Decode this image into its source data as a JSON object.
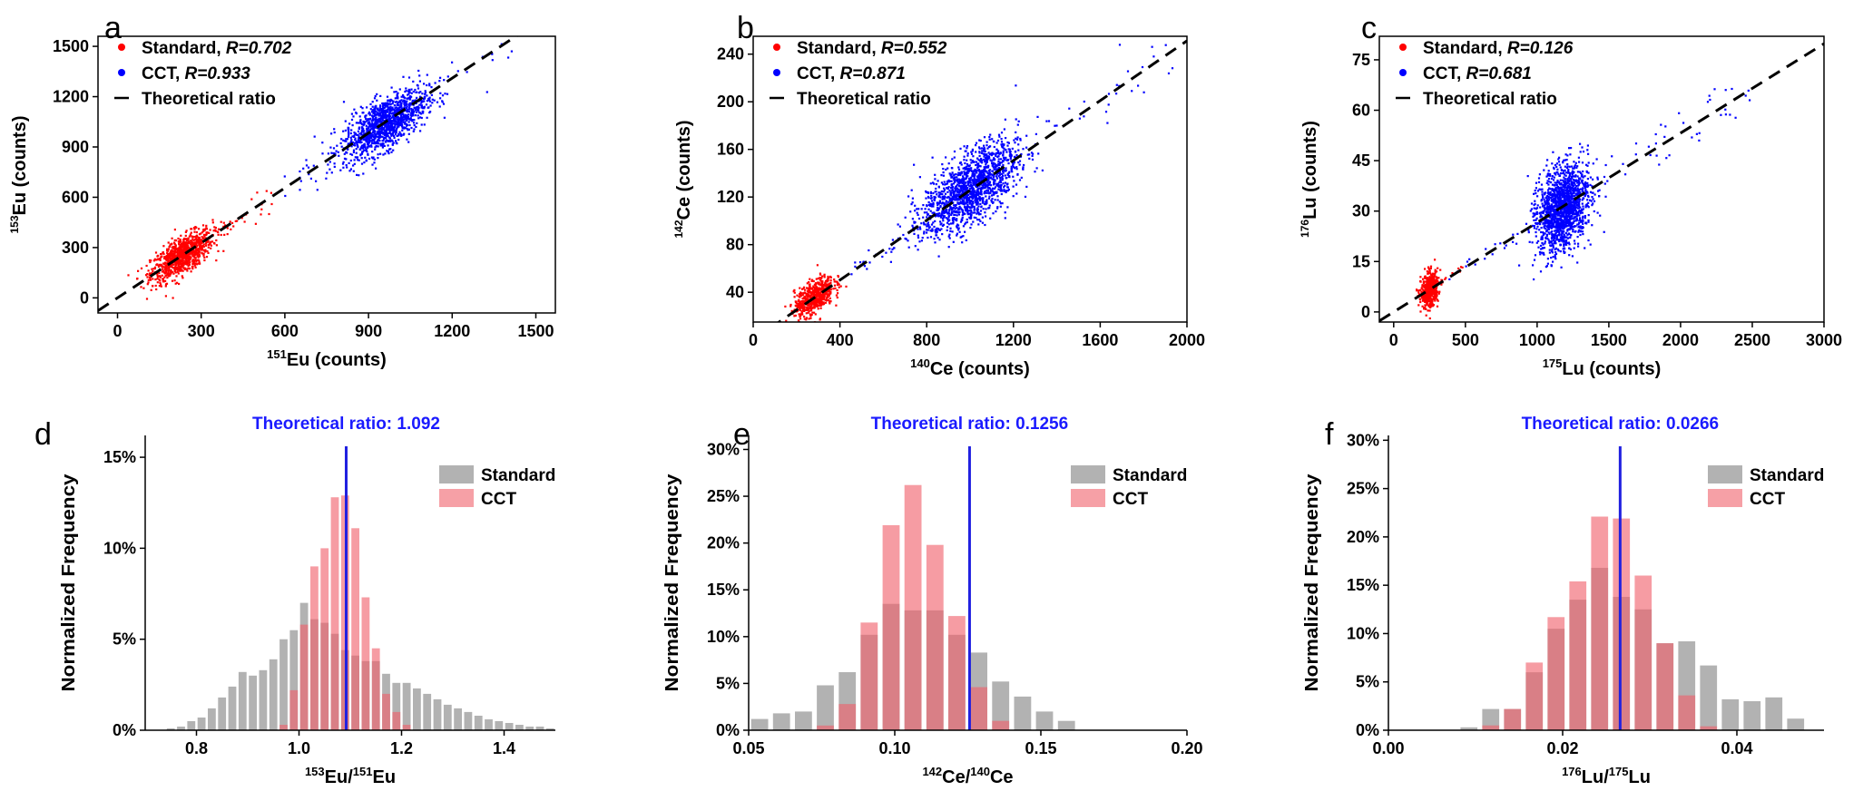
{
  "chart_data": [
    {
      "panel": "a",
      "type": "scatter",
      "xlabel_sup": "151",
      "xlabel_main": "Eu (counts)",
      "ylabel_sup": "153",
      "ylabel_main": "Eu (counts)",
      "xlim": [
        -70,
        1570
      ],
      "ylim": [
        -90,
        1560
      ],
      "xticks": [
        0,
        300,
        600,
        900,
        1200,
        1500
      ],
      "yticks": [
        0,
        300,
        600,
        900,
        1200,
        1500
      ],
      "series": [
        {
          "name": "Standard",
          "r_text": "R=0.702",
          "color": "#ff0000",
          "cluster": {
            "cx": 230,
            "cy": 250,
            "sx": 55,
            "sy": 55,
            "n": 900,
            "tail_to": 560,
            "tail_n": 40
          }
        },
        {
          "name": "CCT",
          "r_text": "R=0.933",
          "color": "#0000ff",
          "cluster": {
            "cx": 960,
            "cy": 1040,
            "sx": 75,
            "sy": 75,
            "n": 1200,
            "tail_from": 560,
            "tail_to": 1420,
            "tail_n": 60
          }
        }
      ],
      "reference_line": {
        "name": "Theoretical ratio",
        "slope": 1.092
      }
    },
    {
      "panel": "b",
      "type": "scatter",
      "xlabel_sup": "140",
      "xlabel_main": "Ce (counts)",
      "ylabel_sup": "142",
      "ylabel_main": "Ce (counts)",
      "xlim": [
        0,
        2000
      ],
      "ylim": [
        15,
        255
      ],
      "xticks": [
        0,
        400,
        800,
        1200,
        1600,
        2000
      ],
      "yticks": [
        40,
        80,
        120,
        160,
        200,
        240
      ],
      "series": [
        {
          "name": "Standard",
          "r_text": "R=0.552",
          "color": "#ff0000",
          "cluster": {
            "cx": 280,
            "cy": 36,
            "sx": 45,
            "sy": 7,
            "n": 600,
            "tail_to": 420,
            "tail_n": 10
          }
        },
        {
          "name": "CCT",
          "r_text": "R=0.871",
          "color": "#0000ff",
          "cluster": {
            "cx": 1000,
            "cy": 127,
            "sx": 110,
            "sy": 15,
            "n": 1500,
            "tail_from": 420,
            "tail_to": 1950,
            "tail_n": 70
          }
        }
      ],
      "reference_line": {
        "name": "Theoretical ratio",
        "slope": 0.1256
      }
    },
    {
      "panel": "c",
      "type": "scatter",
      "xlabel_sup": "175",
      "xlabel_main": "Lu (counts)",
      "ylabel_sup": "176",
      "ylabel_main": "Lu (counts)",
      "xlim": [
        -100,
        3000
      ],
      "ylim": [
        -3,
        82
      ],
      "xticks": [
        0,
        500,
        1000,
        1500,
        2000,
        2500,
        3000
      ],
      "yticks": [
        0,
        15,
        30,
        45,
        60,
        75
      ],
      "series": [
        {
          "name": "Standard",
          "r_text": "R=0.126",
          "color": "#ff0000",
          "cluster": {
            "cx": 250,
            "cy": 6.5,
            "sx": 30,
            "sy": 2.5,
            "n": 500,
            "tail_to": 520,
            "tail_n": 15
          }
        },
        {
          "name": "CCT",
          "r_text": "R=0.681",
          "color": "#0000ff",
          "cluster": {
            "cx": 1180,
            "cy": 31,
            "sx": 90,
            "sy": 6,
            "n": 1500,
            "tail_from": 350,
            "tail_to": 2500,
            "tail_n": 80
          }
        }
      ],
      "reference_line": {
        "name": "Theoretical ratio",
        "slope": 0.0266
      }
    },
    {
      "panel": "d",
      "type": "bar",
      "ylabel": "Normalized Frequency",
      "xlabel_sup1": "153",
      "xlabel_m1": "Eu/",
      "xlabel_sup2": "151",
      "xlabel_m2": "Eu",
      "xlim": [
        0.7,
        1.5
      ],
      "ylim": [
        0,
        0.162
      ],
      "xticks": [
        0.8,
        1.0,
        1.2,
        1.4
      ],
      "xtick_labels": [
        "0.8",
        "1.0",
        "1.2",
        "1.4"
      ],
      "yticks": [
        0,
        0.05,
        0.1,
        0.15
      ],
      "ytick_labels": [
        "0%",
        "5%",
        "10%",
        "15%"
      ],
      "bin_start": 0.74,
      "bin_width": 0.02,
      "theoretical_text": "Theoretical ratio: 1.092",
      "theoretical_value": 1.092,
      "series": [
        {
          "name": "Standard",
          "color": "#7f7f7f",
          "values": [
            0.001,
            0.002,
            0.005,
            0.007,
            0.012,
            0.018,
            0.024,
            0.032,
            0.03,
            0.033,
            0.039,
            0.05,
            0.055,
            0.07,
            0.061,
            0.059,
            0.053,
            0.044,
            0.041,
            0.038,
            0.038,
            0.031,
            0.026,
            0.026,
            0.023,
            0.02,
            0.017,
            0.014,
            0.012,
            0.01,
            0.008,
            0.006,
            0.005,
            0.004,
            0.003,
            0.002,
            0.002,
            0.001
          ]
        },
        {
          "name": "CCT",
          "color": "#f0606a",
          "values": [
            0,
            0,
            0,
            0,
            0,
            0,
            0,
            0,
            0,
            0,
            0,
            0.003,
            0.022,
            0.058,
            0.09,
            0.1,
            0.128,
            0.129,
            0.111,
            0.073,
            0.045,
            0.02,
            0.01,
            0.003,
            0,
            0,
            0,
            0,
            0,
            0,
            0,
            0,
            0,
            0,
            0,
            0,
            0,
            0
          ]
        }
      ]
    },
    {
      "panel": "e",
      "type": "bar",
      "ylabel": "Normalized Frequency",
      "xlabel_sup1": "142",
      "xlabel_m1": "Ce/",
      "xlabel_sup2": "140",
      "xlabel_m2": "Ce",
      "xlim": [
        0.05,
        0.2
      ],
      "ylim": [
        0,
        0.315
      ],
      "xticks": [
        0.05,
        0.1,
        0.15,
        0.2
      ],
      "xtick_labels": [
        "0.05",
        "0.10",
        "0.15",
        "0.20"
      ],
      "yticks": [
        0,
        0.05,
        0.1,
        0.15,
        0.2,
        0.25,
        0.3
      ],
      "ytick_labels": [
        "0%",
        "5%",
        "10%",
        "15%",
        "20%",
        "25%",
        "30%"
      ],
      "bin_start": 0.05,
      "bin_width": 0.0075,
      "theoretical_text": "Theoretical ratio: 0.1256",
      "theoretical_value": 0.1256,
      "series": [
        {
          "name": "Standard",
          "color": "#7f7f7f",
          "values": [
            0.012,
            0.018,
            0.02,
            0.048,
            0.062,
            0.102,
            0.135,
            0.128,
            0.128,
            0.102,
            0.083,
            0.052,
            0.036,
            0.02,
            0.01
          ]
        },
        {
          "name": "CCT",
          "color": "#f0606a",
          "values": [
            0,
            0,
            0,
            0.005,
            0.028,
            0.115,
            0.219,
            0.262,
            0.198,
            0.122,
            0.046,
            0.01,
            0,
            0,
            0
          ]
        }
      ]
    },
    {
      "panel": "f",
      "type": "bar",
      "ylabel": "Normalized Frequency",
      "xlabel_sup1": "176",
      "xlabel_m1": "Lu/",
      "xlabel_sup2": "175",
      "xlabel_m2": "Lu",
      "xlim": [
        0.0,
        0.05
      ],
      "ylim": [
        0,
        0.305
      ],
      "xticks": [
        0.0,
        0.02,
        0.04
      ],
      "xtick_labels": [
        "0.00",
        "0.02",
        "0.04"
      ],
      "yticks": [
        0,
        0.05,
        0.1,
        0.15,
        0.2,
        0.25,
        0.3
      ],
      "ytick_labels": [
        "0%",
        "5%",
        "10%",
        "15%",
        "20%",
        "25%",
        "30%"
      ],
      "bin_start": 0.008,
      "bin_width": 0.0025,
      "theoretical_text": "Theoretical ratio: 0.0266",
      "theoretical_value": 0.0266,
      "series": [
        {
          "name": "Standard",
          "color": "#7f7f7f",
          "values": [
            0.003,
            0.022,
            0.022,
            0.06,
            0.105,
            0.135,
            0.168,
            0.138,
            0.125,
            0.09,
            0.092,
            0.067,
            0.032,
            0.03,
            0.034,
            0.012,
            0.006
          ]
        },
        {
          "name": "CCT",
          "color": "#f0606a",
          "values": [
            0,
            0.005,
            0.022,
            0.07,
            0.117,
            0.154,
            0.221,
            0.219,
            0.16,
            0.09,
            0.036,
            0.004,
            0,
            0,
            0,
            0,
            0
          ]
        }
      ]
    }
  ],
  "panel_labels": [
    "a",
    "b",
    "c",
    "d",
    "e",
    "f"
  ]
}
